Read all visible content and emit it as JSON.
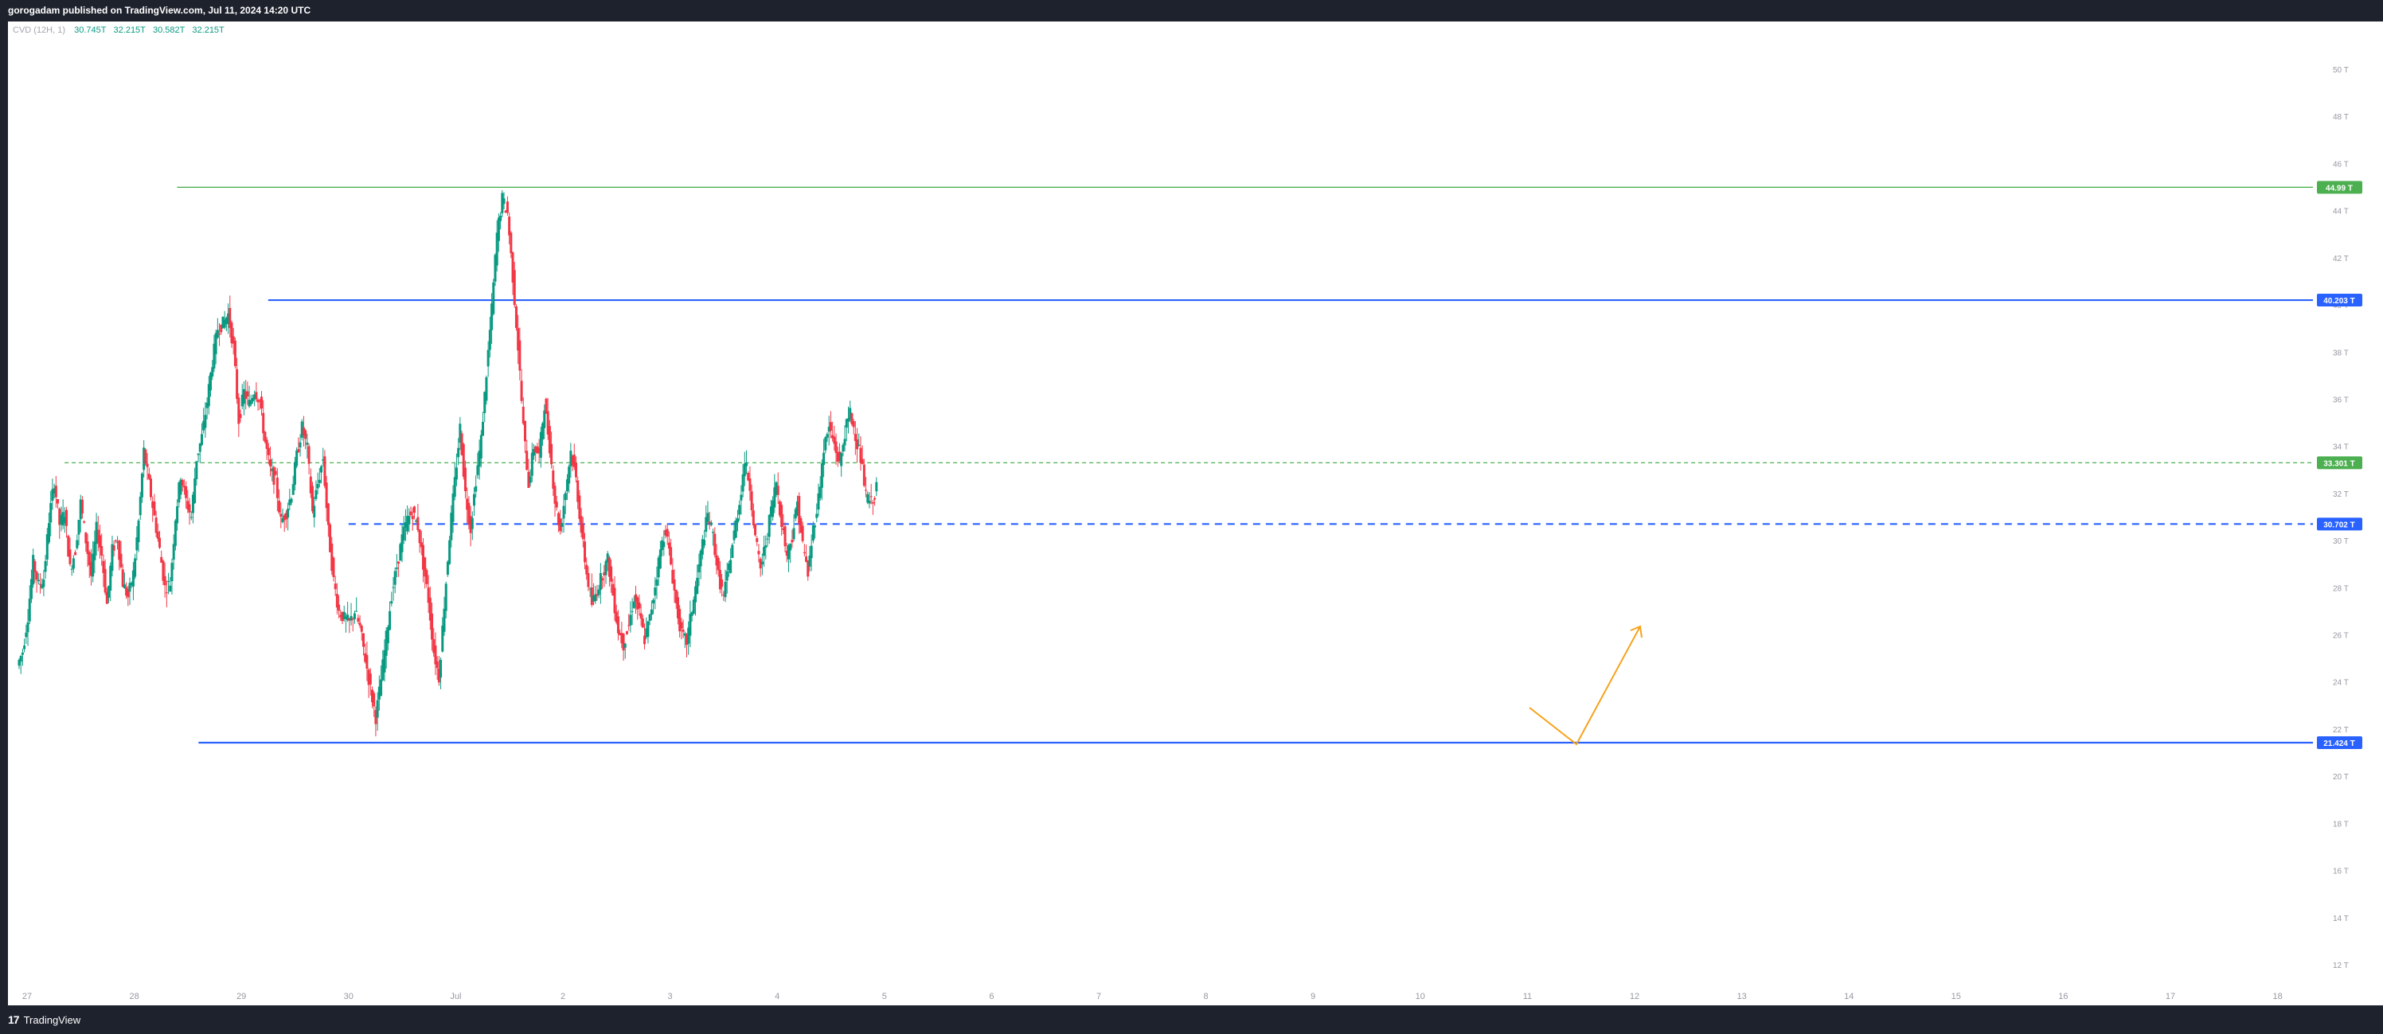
{
  "publish_info": "gorogadam published on TradingView.com, Jul 11, 2024 14:20 UTC",
  "branding": {
    "logo_glyph": "17",
    "name": "TradingView"
  },
  "legend": {
    "indicator": "CVD (12H, 1)",
    "values": [
      "30.745T",
      "32.215T",
      "30.582T",
      "32.215T"
    ]
  },
  "colors": {
    "up": "#089981",
    "down": "#f23645",
    "support_resistance": "#2962ff",
    "green_line": "#4caf50",
    "arrow": "#f7a21b",
    "frame": "#1e222d"
  },
  "chart_data": {
    "type": "candlestick",
    "y_unit": "T",
    "ylim": [
      11,
      51.5
    ],
    "y_ticks": [
      "12 T",
      "14 T",
      "16 T",
      "18 T",
      "20 T",
      "22 T",
      "24 T",
      "26 T",
      "28 T",
      "30 T",
      "32 T",
      "34 T",
      "36 T",
      "38 T",
      "40 T",
      "42 T",
      "44 T",
      "46 T",
      "48 T",
      "50 T"
    ],
    "x_ticks": [
      "27",
      "28",
      "29",
      "30",
      "Jul",
      "2",
      "3",
      "4",
      "5",
      "6",
      "7",
      "8",
      "9",
      "10",
      "11",
      "12",
      "13",
      "14",
      "15",
      "16",
      "17",
      "18"
    ],
    "grid": false,
    "horizontal_levels": [
      {
        "label": "44.99 T",
        "value": 44.99,
        "style": "solid",
        "color": "#4caf50",
        "from_day": 1.4
      },
      {
        "label": "40.203 T",
        "value": 40.203,
        "style": "solid",
        "color": "#2962ff",
        "from_day": 2.25
      },
      {
        "label": "33.301 T",
        "value": 33.301,
        "style": "dashed",
        "color": "#4caf50",
        "from_day": 0.35
      },
      {
        "label": "30.702 T",
        "value": 30.702,
        "style": "dashed",
        "color": "#2962ff",
        "from_day": 3.0
      },
      {
        "label": "21.424 T",
        "value": 21.424,
        "style": "solid",
        "color": "#2962ff",
        "from_day": 1.6
      }
    ],
    "closes": [
      25.3,
      26.8,
      29.1,
      28.1,
      28.4,
      30.9,
      32.5,
      30.7,
      31.2,
      28.8,
      29.6,
      31.6,
      30.0,
      28.5,
      30.5,
      29.4,
      27.3,
      29.6,
      30.1,
      28.2,
      27.6,
      28.6,
      30.8,
      33.8,
      32.4,
      31.0,
      29.6,
      28.0,
      28.2,
      31.0,
      32.8,
      31.7,
      31.0,
      33.5,
      34.4,
      35.9,
      37.6,
      39.0,
      39.2,
      39.6,
      38.2,
      35.1,
      36.3,
      35.8,
      36.4,
      35.9,
      34.2,
      33.0,
      32.5,
      30.8,
      31.2,
      32.0,
      33.6,
      34.8,
      33.9,
      31.2,
      32.4,
      33.5,
      30.4,
      28.3,
      27.0,
      26.7,
      26.5,
      27.0,
      26.3,
      25.0,
      23.7,
      22.5,
      24.1,
      25.9,
      27.7,
      28.9,
      30.1,
      30.9,
      31.2,
      30.6,
      29.0,
      27.5,
      25.3,
      24.2,
      27.3,
      30.2,
      32.5,
      34.8,
      32.0,
      30.5,
      32.6,
      34.3,
      37.1,
      39.8,
      43.0,
      44.5,
      43.9,
      41.2,
      38.2,
      34.8,
      32.4,
      34.0,
      33.6,
      35.8,
      34.0,
      31.7,
      30.4,
      32.1,
      33.8,
      32.6,
      30.4,
      28.6,
      27.3,
      27.9,
      28.6,
      29.2,
      27.7,
      26.2,
      25.6,
      26.4,
      27.6,
      26.9,
      25.8,
      26.7,
      28.1,
      29.6,
      30.5,
      29.0,
      27.3,
      26.0,
      25.7,
      27.1,
      28.4,
      29.9,
      31.1,
      30.2,
      28.5,
      27.6,
      28.9,
      30.3,
      31.6,
      33.4,
      32.3,
      30.1,
      28.8,
      29.9,
      31.3,
      32.5,
      30.8,
      29.4,
      30.2,
      31.6,
      29.8,
      28.6,
      30.5,
      31.8,
      33.9,
      34.8,
      34.1,
      33.2,
      34.6,
      35.4,
      34.5,
      33.5,
      31.9,
      31.6,
      32.2
    ]
  }
}
